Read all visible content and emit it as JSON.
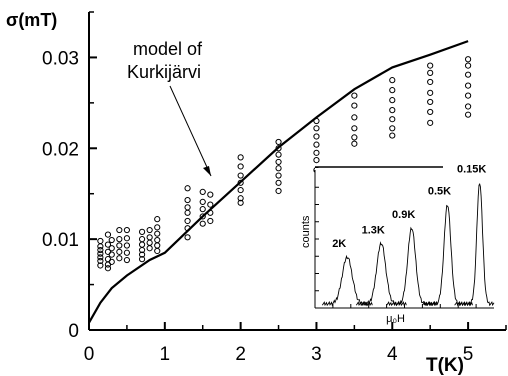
{
  "chart_data": {
    "type": "scatter",
    "ylabel": "σ(mT)",
    "xlabel": "T(K)",
    "xlim": [
      0,
      5.5
    ],
    "ylim": [
      0,
      0.035
    ],
    "xticks": [
      "0",
      "1",
      "2",
      "3",
      "4",
      "5"
    ],
    "yticks": [
      "0",
      "0.01",
      "0.02",
      "0.03"
    ],
    "annotation": [
      "model of",
      "Kurkijärvi"
    ],
    "series": [
      {
        "kind": "line",
        "x": [
          0,
          0.15,
          0.3,
          0.5,
          0.8,
          1.0,
          1.5,
          2.0,
          2.5,
          3.0,
          3.5,
          4.0,
          4.5,
          5.0
        ],
        "y": [
          0.0008,
          0.003,
          0.0046,
          0.006,
          0.0077,
          0.0085,
          0.0125,
          0.0163,
          0.0201,
          0.0234,
          0.0265,
          0.0289,
          0.0303,
          0.0318
        ]
      },
      {
        "kind": "points",
        "points": [
          [
            0.15,
            0.0098
          ],
          [
            0.15,
            0.0092
          ],
          [
            0.15,
            0.0088
          ],
          [
            0.15,
            0.0084
          ],
          [
            0.15,
            0.008
          ],
          [
            0.15,
            0.0076
          ],
          [
            0.15,
            0.0071
          ],
          [
            0.25,
            0.0105
          ],
          [
            0.25,
            0.0094
          ],
          [
            0.25,
            0.0086
          ],
          [
            0.25,
            0.0078
          ],
          [
            0.25,
            0.0072
          ],
          [
            0.25,
            0.0068
          ],
          [
            0.3,
            0.0099
          ],
          [
            0.3,
            0.009
          ],
          [
            0.3,
            0.0083
          ],
          [
            0.3,
            0.0075
          ],
          [
            0.4,
            0.011
          ],
          [
            0.4,
            0.01
          ],
          [
            0.4,
            0.0093
          ],
          [
            0.4,
            0.0086
          ],
          [
            0.4,
            0.0079
          ],
          [
            0.5,
            0.011
          ],
          [
            0.5,
            0.0101
          ],
          [
            0.5,
            0.0093
          ],
          [
            0.5,
            0.0085
          ],
          [
            0.5,
            0.0077
          ],
          [
            0.7,
            0.0108
          ],
          [
            0.7,
            0.01
          ],
          [
            0.7,
            0.0094
          ],
          [
            0.7,
            0.0088
          ],
          [
            0.7,
            0.0083
          ],
          [
            0.7,
            0.0078
          ],
          [
            0.8,
            0.011
          ],
          [
            0.8,
            0.0102
          ],
          [
            0.8,
            0.0096
          ],
          [
            0.8,
            0.009
          ],
          [
            0.9,
            0.0122
          ],
          [
            0.9,
            0.0113
          ],
          [
            0.9,
            0.0106
          ],
          [
            0.9,
            0.0099
          ],
          [
            0.9,
            0.0093
          ],
          [
            0.9,
            0.0087
          ],
          [
            1.3,
            0.0156
          ],
          [
            1.3,
            0.0143
          ],
          [
            1.3,
            0.0135
          ],
          [
            1.3,
            0.0129
          ],
          [
            1.3,
            0.012
          ],
          [
            1.3,
            0.0112
          ],
          [
            1.3,
            0.0102
          ],
          [
            1.5,
            0.0152
          ],
          [
            1.5,
            0.0141
          ],
          [
            1.5,
            0.0133
          ],
          [
            1.5,
            0.0125
          ],
          [
            1.5,
            0.0117
          ],
          [
            1.6,
            0.0149
          ],
          [
            1.6,
            0.0138
          ],
          [
            1.6,
            0.0129
          ],
          [
            1.6,
            0.012
          ],
          [
            2.0,
            0.019
          ],
          [
            2.0,
            0.018
          ],
          [
            2.0,
            0.017
          ],
          [
            2.0,
            0.0162
          ],
          [
            2.0,
            0.0154
          ],
          [
            2.0,
            0.0145
          ],
          [
            2.0,
            0.014
          ],
          [
            2.5,
            0.0207
          ],
          [
            2.5,
            0.02
          ],
          [
            2.5,
            0.0193
          ],
          [
            2.5,
            0.0185
          ],
          [
            2.5,
            0.0178
          ],
          [
            2.5,
            0.017
          ],
          [
            2.5,
            0.0162
          ],
          [
            2.5,
            0.0153
          ],
          [
            3.0,
            0.023
          ],
          [
            3.0,
            0.0222
          ],
          [
            3.0,
            0.0213
          ],
          [
            3.0,
            0.0204
          ],
          [
            3.0,
            0.0195
          ],
          [
            3.0,
            0.0187
          ],
          [
            3.0,
            0.0176
          ],
          [
            3.5,
            0.0258
          ],
          [
            3.5,
            0.0247
          ],
          [
            3.5,
            0.0234
          ],
          [
            3.5,
            0.0222
          ],
          [
            3.5,
            0.0212
          ],
          [
            3.5,
            0.0205
          ],
          [
            4.0,
            0.0275
          ],
          [
            4.0,
            0.0264
          ],
          [
            4.0,
            0.0253
          ],
          [
            4.0,
            0.0242
          ],
          [
            4.0,
            0.0232
          ],
          [
            4.0,
            0.0222
          ],
          [
            4.0,
            0.0214
          ],
          [
            4.5,
            0.0291
          ],
          [
            4.5,
            0.0283
          ],
          [
            4.5,
            0.0273
          ],
          [
            4.5,
            0.0261
          ],
          [
            4.5,
            0.0251
          ],
          [
            4.5,
            0.024
          ],
          [
            4.5,
            0.0228
          ],
          [
            5.0,
            0.0298
          ],
          [
            5.0,
            0.0291
          ],
          [
            5.0,
            0.0281
          ],
          [
            5.0,
            0.0269
          ],
          [
            5.0,
            0.0258
          ],
          [
            5.0,
            0.0246
          ],
          [
            5.0,
            0.0237
          ]
        ]
      }
    ],
    "inset": {
      "ylabel": "counts",
      "xlabel": "μ₀H",
      "peak_labels": [
        "2K",
        "1.3K",
        "0.9K",
        "0.5K",
        "0.15K"
      ],
      "peak_positions": [
        0.18,
        0.37,
        0.54,
        0.74,
        0.92
      ],
      "peak_heights": [
        0.34,
        0.44,
        0.55,
        0.72,
        0.88
      ]
    }
  }
}
